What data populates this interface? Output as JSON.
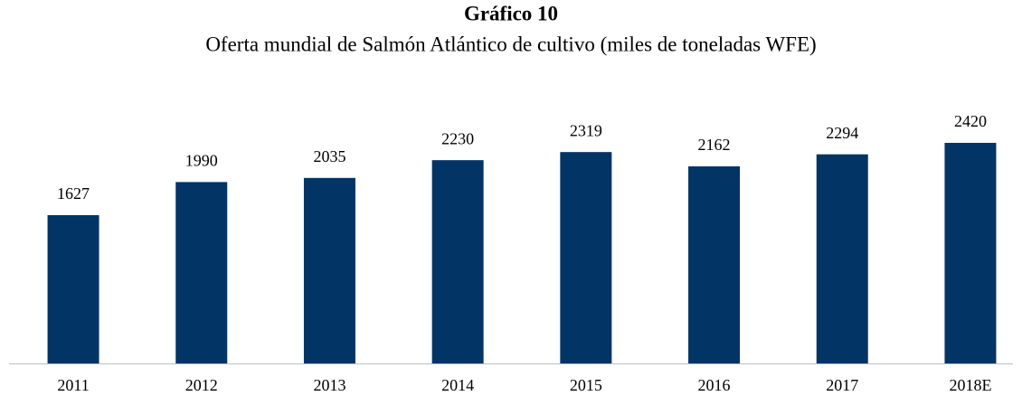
{
  "chart_data": {
    "type": "bar",
    "title": "Gráfico 10",
    "subtitle": "Oferta mundial de Salmón Atlántico de cultivo (miles de toneladas WFE)",
    "categories": [
      "2011",
      "2012",
      "2013",
      "2014",
      "2015",
      "2016",
      "2017",
      "2018E"
    ],
    "values": [
      1627,
      1990,
      2035,
      2230,
      2319,
      2162,
      2294,
      2420
    ],
    "color": "#023466"
  }
}
